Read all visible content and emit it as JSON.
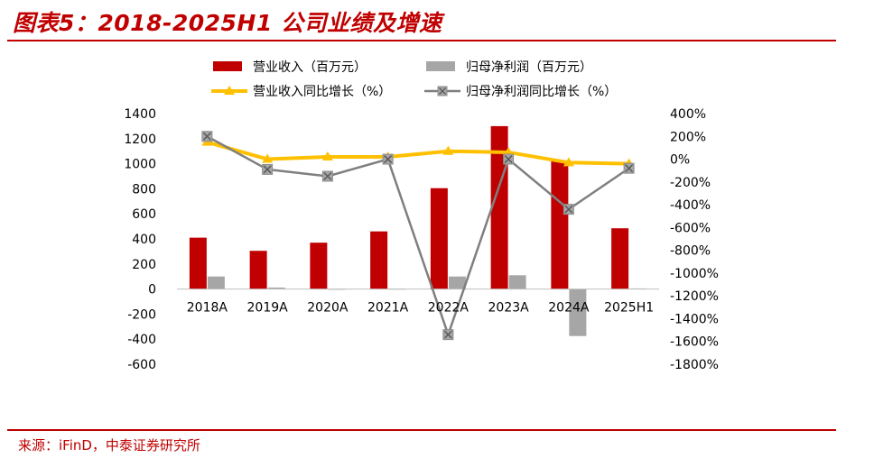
{
  "figure_title": "图表5：2018-2025H1 公司业绩及增速",
  "source": "来源：iFinD，中泰证券研究所",
  "colors": {
    "revenue_bar": "#c00000",
    "profit_bar": "#a6a6a6",
    "revenue_growth_line": "#ffc000",
    "profit_growth_line": "#7f7f7f",
    "accent": "#c00000"
  },
  "chart_data": {
    "type": "bar",
    "categories": [
      "2018A",
      "2019A",
      "2020A",
      "2021A",
      "2022A",
      "2023A",
      "2024A",
      "2025H1"
    ],
    "series": [
      {
        "name": "营业收入（百万元）",
        "type": "bar",
        "axis": "left",
        "values": [
          410,
          305,
          370,
          460,
          805,
          1300,
          1020,
          485
        ]
      },
      {
        "name": "归母净利润（百万元）",
        "type": "bar",
        "axis": "left",
        "values": [
          100,
          12,
          2,
          3,
          100,
          110,
          -375,
          5
        ]
      },
      {
        "name": "营业收入同比增长（%）",
        "type": "line",
        "axis": "right",
        "values": [
          150,
          0,
          20,
          20,
          70,
          60,
          -30,
          -40
        ]
      },
      {
        "name": "归母净利润同比增长（%）",
        "type": "line",
        "axis": "right",
        "values": [
          200,
          -90,
          -150,
          0,
          -1540,
          0,
          -440,
          -80
        ]
      }
    ],
    "y_left": {
      "min": -600,
      "max": 1400,
      "step": 200,
      "tick_labels": [
        "-600",
        "-400",
        "-200",
        "0",
        "200",
        "400",
        "600",
        "800",
        "1000",
        "1200",
        "1400"
      ]
    },
    "y_right": {
      "min": -1800,
      "max": 400,
      "step": 200,
      "tick_labels": [
        "-1800%",
        "-1600%",
        "-1400%",
        "-1200%",
        "-1000%",
        "-800%",
        "-600%",
        "-400%",
        "-200%",
        "0%",
        "200%",
        "400%"
      ]
    },
    "legend_position": "top",
    "grid": false
  }
}
